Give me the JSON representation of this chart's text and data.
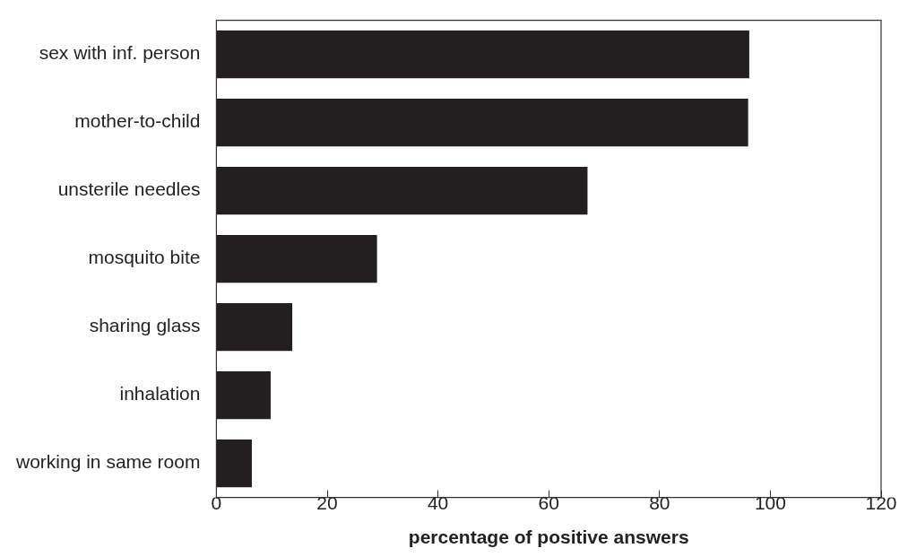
{
  "chart_data": {
    "type": "bar",
    "orientation": "horizontal",
    "xlabel": "percentage of positive answers",
    "categories": [
      "sex with inf. person",
      "mother-to-child",
      "unsterile needles",
      "mosquito bite",
      "sharing glass",
      "inhalation",
      "working in same room"
    ],
    "values": [
      96.2,
      96,
      67,
      29,
      13.7,
      9.8,
      6.4
    ],
    "color": "#231f20",
    "xlim": [
      0,
      120
    ],
    "xticks": [
      0,
      20,
      40,
      60,
      80,
      100,
      120
    ],
    "grid": false,
    "legend": false
  }
}
